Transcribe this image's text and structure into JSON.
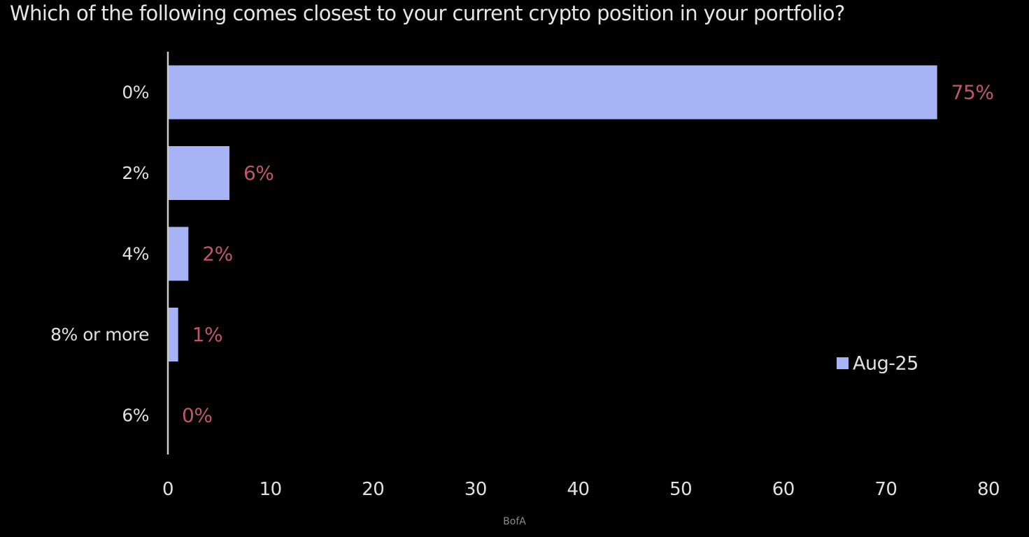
{
  "colors": {
    "background": "#000000",
    "bar": "#a6b3f5",
    "data_label": "#c0566b",
    "text": "#e0e0e0",
    "axis": "#cccccc"
  },
  "source": "BofA",
  "chart_data": {
    "type": "bar",
    "orientation": "horizontal",
    "title": "Which of the following comes closest to your current crypto position in your portfolio?",
    "categories": [
      "0%",
      "2%",
      "4%",
      "8% or more",
      "6%"
    ],
    "series": [
      {
        "name": "Aug-25",
        "values": [
          75,
          6,
          2,
          1,
          0
        ],
        "data_labels": [
          "75%",
          "6%",
          "2%",
          "1%",
          "0%"
        ]
      }
    ],
    "xlim": [
      0,
      80
    ],
    "x_ticks": [
      0,
      10,
      20,
      30,
      40,
      50,
      60,
      70,
      80
    ],
    "grid": false,
    "legend_position": "bottom-right"
  }
}
